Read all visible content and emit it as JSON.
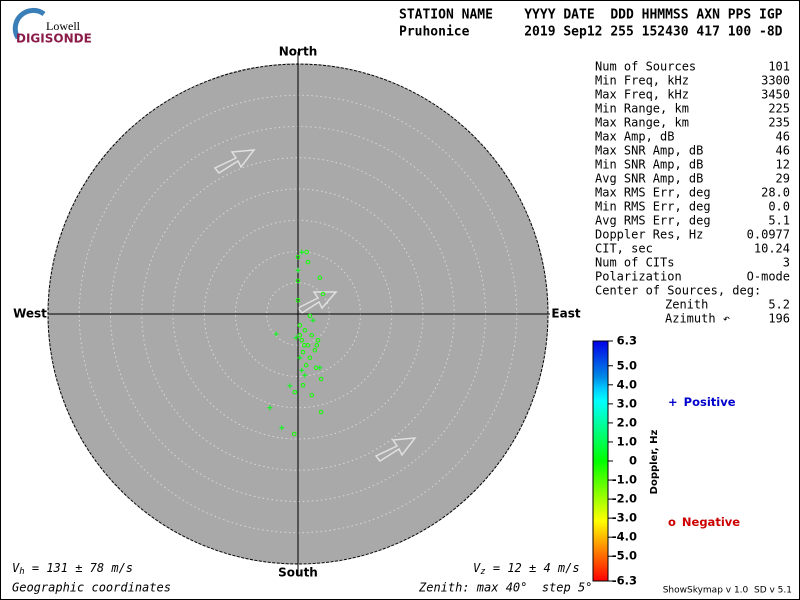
{
  "logo": {
    "brand": "Lowell",
    "product": "DIGISONDE"
  },
  "header": {
    "labels": "STATION NAME    YYYY DATE  DDD HHMMSS AXN PPS IGP",
    "values": "Pruhonice       2019 Sep12 255 152430 417 100 -8D"
  },
  "stats": [
    [
      "Num of Sources",
      "101"
    ],
    [
      "Min Freq, kHz",
      "3300"
    ],
    [
      "Max Freq, kHz",
      "3450"
    ],
    [
      "Min Range, km",
      "225"
    ],
    [
      "Max Range, km",
      "235"
    ],
    [
      "Max Amp, dB",
      "46"
    ],
    [
      "Max SNR Amp, dB",
      "46"
    ],
    [
      "Min SNR Amp, dB",
      "12"
    ],
    [
      "Avg SNR Amp, dB",
      "29"
    ],
    [
      "Max RMS Err, deg",
      "28.0"
    ],
    [
      "Min RMS Err, deg",
      "0.0"
    ],
    [
      "Avg RMS Err, deg",
      "5.1"
    ],
    [
      "Doppler Res, Hz",
      "0.0977"
    ],
    [
      "CIT, sec",
      "10.24"
    ],
    [
      "Num of CITs",
      "3"
    ],
    [
      "Polarization",
      "O-mode"
    ]
  ],
  "center": {
    "title": "Center of Sources, deg:",
    "rows": [
      [
        "Zenith",
        "5.2"
      ],
      [
        "Azimuth ↶",
        "196"
      ]
    ]
  },
  "footer": {
    "vh_symbol": "V",
    "vh_sub": "h",
    "vh_text": " = 131 ± 78 m/s",
    "vz_symbol": "V",
    "vz_sub": "z",
    "vz_text": " = 12 ± 4 m/s",
    "coords": "Geographic coordinates",
    "zenith": "Zenith: max 40°  step 5°",
    "version": "ShowSkymap v 1.0  SD v 5.1"
  },
  "chart_data": {
    "type": "skymap",
    "directions": {
      "north": "North",
      "south": "South",
      "west": "West",
      "east": "East"
    },
    "xlim": [
      -40,
      40
    ],
    "ylim": [
      -40,
      40
    ],
    "rticks": [
      5,
      10,
      15,
      20,
      25,
      30,
      35,
      40
    ],
    "colorbar": {
      "label": "Doppler, Hz",
      "lim": [
        -6.3,
        6.3
      ],
      "ticks": [
        6.3,
        {
          "value": 5,
          "label": "5.0"
        },
        {
          "value": 4,
          "label": "4.0"
        },
        {
          "value": 3,
          "label": "3.0"
        },
        {
          "value": 2,
          "label": "2.0"
        },
        {
          "value": 1,
          "label": "1.0"
        },
        0,
        {
          "value": -1,
          "label": "-1.0"
        },
        {
          "value": -2,
          "label": "-2.0"
        },
        {
          "value": -3,
          "label": "-3.0"
        },
        {
          "value": -4,
          "label": "-4.0"
        },
        {
          "value": -5,
          "label": "-5.0"
        },
        -6.3
      ]
    },
    "series": [
      {
        "name": "Positive",
        "symbol": "+",
        "color": "#0000cc",
        "points": [
          {
            "x": 0.6,
            "y": 9.9,
            "doppler": 0.2
          },
          {
            "x": 0,
            "y": 7,
            "doppler": 0.2
          },
          {
            "x": -3.5,
            "y": -3.2,
            "doppler": 0.2
          },
          {
            "x": -0.3,
            "y": -3.8,
            "doppler": 0.2
          },
          {
            "x": 0.3,
            "y": -7,
            "doppler": 0.2
          },
          {
            "x": 1.1,
            "y": -9.8,
            "doppler": 0.2
          },
          {
            "x": -1.3,
            "y": -11.5,
            "doppler": 0.2
          },
          {
            "x": -4.5,
            "y": -15,
            "doppler": 0.2
          },
          {
            "x": -2.6,
            "y": -18.2,
            "doppler": 0.2
          },
          {
            "x": 3.5,
            "y": -8.6,
            "doppler": 0.2
          },
          {
            "x": 2.4,
            "y": -1,
            "doppler": 0.2
          },
          {
            "x": 0.6,
            "y": -9,
            "doppler": 0.2
          }
        ]
      },
      {
        "name": "Negative",
        "symbol": "o",
        "color": "#cc0000",
        "points": [
          {
            "x": 1.4,
            "y": 9.9,
            "doppler": -0.2
          },
          {
            "x": 0,
            "y": 9.1,
            "doppler": -0.2
          },
          {
            "x": 1.6,
            "y": 8.3,
            "doppler": -0.2
          },
          {
            "x": 3.5,
            "y": 5.8,
            "doppler": -0.2
          },
          {
            "x": 0,
            "y": 5.3,
            "doppler": -0.2
          },
          {
            "x": 0,
            "y": 2.2,
            "doppler": -0.2
          },
          {
            "x": 4,
            "y": 3.2,
            "doppler": -0.2
          },
          {
            "x": 1.9,
            "y": -0.3,
            "doppler": -0.2
          },
          {
            "x": 0.3,
            "y": -1.8,
            "doppler": -0.2
          },
          {
            "x": 1.1,
            "y": -2.6,
            "doppler": -0.2
          },
          {
            "x": 2.2,
            "y": -3.4,
            "doppler": -0.2
          },
          {
            "x": 3.2,
            "y": -4.2,
            "doppler": -0.2
          },
          {
            "x": 0.6,
            "y": -4.2,
            "doppler": -0.2
          },
          {
            "x": 1.6,
            "y": -5,
            "doppler": -0.2
          },
          {
            "x": 2.7,
            "y": -5.8,
            "doppler": -0.2
          },
          {
            "x": 0.8,
            "y": -6.1,
            "doppler": -0.2
          },
          {
            "x": 1.9,
            "y": -7,
            "doppler": -0.2
          },
          {
            "x": 1.3,
            "y": -8.2,
            "doppler": -0.2
          },
          {
            "x": 2.9,
            "y": -8.6,
            "doppler": -0.2
          },
          {
            "x": 3.7,
            "y": -10.4,
            "doppler": -0.2
          },
          {
            "x": 0.8,
            "y": -11.4,
            "doppler": -0.2
          },
          {
            "x": -0.5,
            "y": -12.5,
            "doppler": -0.2
          },
          {
            "x": 3.7,
            "y": -15.7,
            "doppler": -0.2
          },
          {
            "x": -0.6,
            "y": -19.2,
            "doppler": -0.2
          },
          {
            "x": 2.2,
            "y": -13,
            "doppler": -0.2
          },
          {
            "x": 0.3,
            "y": -3.4,
            "doppler": -0.2
          },
          {
            "x": 1,
            "y": -5,
            "doppler": -0.2
          },
          {
            "x": 3,
            "y": -5,
            "doppler": -0.2
          }
        ]
      }
    ]
  }
}
